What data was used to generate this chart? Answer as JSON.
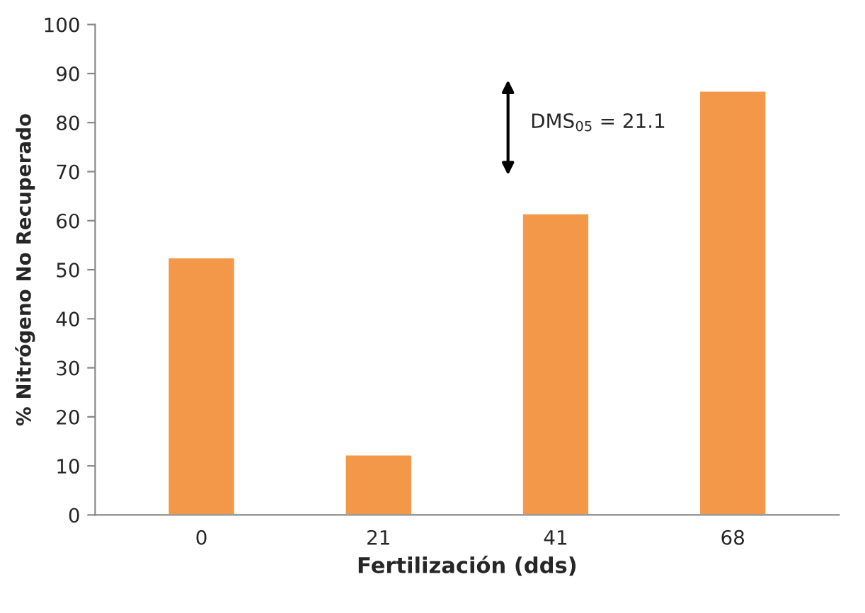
{
  "chart_data": {
    "type": "bar",
    "xlabel": "Fertilización (dds)",
    "ylabel": "% Nitrógeno No Recuperado",
    "categories": [
      "0",
      "21",
      "41",
      "68"
    ],
    "values": [
      52.5,
      12.3,
      61.5,
      86.5
    ],
    "color": "#f39848",
    "ylim": [
      0,
      100
    ],
    "yticks": [
      0,
      10,
      20,
      30,
      40,
      50,
      60,
      70,
      80,
      90,
      100
    ],
    "annotations": [
      "DMS$_{05}$ = 21.1"
    ]
  }
}
